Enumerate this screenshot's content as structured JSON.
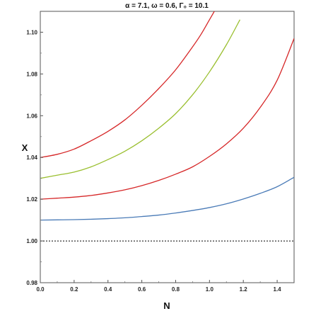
{
  "chart_data": {
    "type": "line",
    "title": "α = 7.1, ω = 0.6, Γ₀ = 10.1",
    "xlabel": "N",
    "ylabel": "X",
    "xlim": [
      0,
      1.5
    ],
    "ylim": [
      0.98,
      1.11
    ],
    "x_ticks": [
      "0.0",
      "0.2",
      "0.4",
      "0.6",
      "0.8",
      "1.0",
      "1.2",
      "1.4"
    ],
    "x_tick_values": [
      0,
      0.2,
      0.4,
      0.6,
      0.8,
      1.0,
      1.2,
      1.4
    ],
    "y_ticks": [
      "0.98",
      "1.00",
      "1.02",
      "1.04",
      "1.06",
      "1.08",
      "1.10"
    ],
    "y_tick_values": [
      0.98,
      1.0,
      1.02,
      1.04,
      1.06,
      1.08,
      1.1
    ],
    "grid": false,
    "series": [
      {
        "color": "#d62728",
        "x": [
          0,
          0.1,
          0.2,
          0.3,
          0.4,
          0.5,
          0.6,
          0.7,
          0.8,
          0.9,
          0.95,
          1.0,
          1.05
        ],
        "values": [
          1.04,
          1.0415,
          1.044,
          1.048,
          1.0525,
          1.058,
          1.065,
          1.073,
          1.082,
          1.093,
          1.099,
          1.106,
          1.113
        ]
      },
      {
        "color": "#9abf2f",
        "x": [
          0,
          0.1,
          0.2,
          0.3,
          0.4,
          0.5,
          0.6,
          0.7,
          0.8,
          0.9,
          1.0,
          1.1,
          1.18
        ],
        "values": [
          1.03,
          1.0315,
          1.033,
          1.0355,
          1.039,
          1.043,
          1.048,
          1.054,
          1.061,
          1.07,
          1.081,
          1.094,
          1.106
        ]
      },
      {
        "color": "#d62728",
        "x": [
          0,
          0.1,
          0.2,
          0.3,
          0.4,
          0.5,
          0.6,
          0.7,
          0.8,
          0.9,
          1.0,
          1.1,
          1.2,
          1.3,
          1.4,
          1.5
        ],
        "values": [
          1.02,
          1.0205,
          1.021,
          1.0218,
          1.023,
          1.0245,
          1.0265,
          1.029,
          1.032,
          1.0355,
          1.0405,
          1.0465,
          1.054,
          1.064,
          1.077,
          1.097
        ]
      },
      {
        "color": "#4a7bb7",
        "x": [
          0,
          0.1,
          0.2,
          0.3,
          0.4,
          0.5,
          0.6,
          0.7,
          0.8,
          0.9,
          1.0,
          1.1,
          1.2,
          1.3,
          1.4,
          1.5
        ],
        "values": [
          1.01,
          1.0101,
          1.0102,
          1.0104,
          1.0107,
          1.0111,
          1.0117,
          1.0124,
          1.0134,
          1.0146,
          1.016,
          1.0178,
          1.0201,
          1.0228,
          1.026,
          1.0305
        ]
      }
    ],
    "reference_lines": [
      {
        "y": 1.0,
        "style": "dotted",
        "color": "#000000"
      }
    ]
  }
}
